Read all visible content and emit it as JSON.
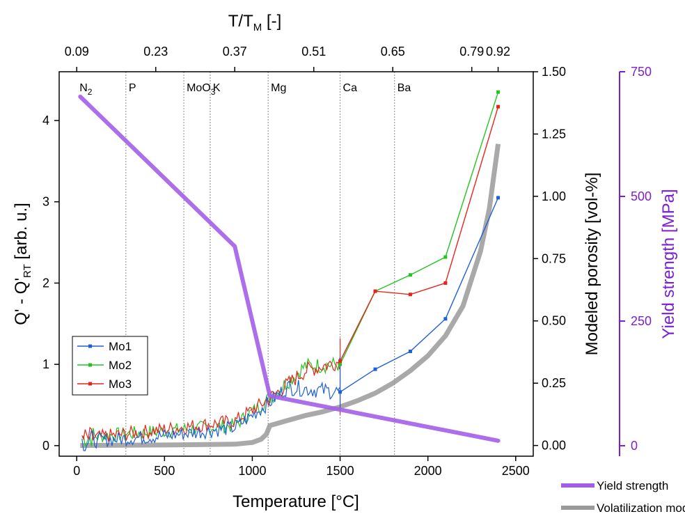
{
  "chart_data": {
    "type": "line",
    "xlabel": "Temperature [°C]",
    "x_ticks": [
      0,
      500,
      1000,
      1500,
      2000,
      2500
    ],
    "xlim": [
      -100,
      2600
    ],
    "top_axis": {
      "label_main": "T/T",
      "label_sub": "M",
      "label_tail": " [-]",
      "ticks": [
        {
          "label": "0.09",
          "x": 0
        },
        {
          "label": "0.23",
          "x": 450
        },
        {
          "label": "0.37",
          "x": 900
        },
        {
          "label": "0.51",
          "x": 1350
        },
        {
          "label": "0.65",
          "x": 1800
        },
        {
          "label": "0.79",
          "x": 2250
        },
        {
          "label": "0.92",
          "x": 2400
        }
      ]
    },
    "ylabel_left": {
      "main": "Q' - Q'",
      "sub": "RT",
      "tail": " [arb. u.]"
    },
    "y_left_ticks": [
      0,
      1,
      2,
      3,
      4
    ],
    "ylim_left": [
      -0.13,
      4.6
    ],
    "ylabel_right": "Modeled porosity [vol-%]",
    "y_right_ticks": [
      "0.00",
      "0.25",
      "0.50",
      "0.75",
      "1.00",
      "1.25",
      "1.50"
    ],
    "ylim_right": [
      -0.043,
      1.5
    ],
    "ylabel_right2": "Yield strength [MPa]",
    "y_right2_ticks": [
      0,
      250,
      500,
      750
    ],
    "ylim_right2": [
      -21,
      750
    ],
    "colors": {
      "Mo1": "#1f5fd6",
      "Mo2": "#22c422",
      "Mo3": "#e8231c",
      "yield": "#a35ee8",
      "volatilization": "#9a9a9a",
      "right2_axis": "#7a1fd6"
    },
    "markers": [
      {
        "label": "N",
        "sub": "2",
        "x": 0,
        "line": false
      },
      {
        "label": "P",
        "sub": "",
        "x": 280,
        "line": true
      },
      {
        "label": "MoO",
        "sub": "3",
        "x": 610,
        "line": true
      },
      {
        "label": "K",
        "sub": "",
        "x": 760,
        "line": true
      },
      {
        "label": "Mg",
        "sub": "",
        "x": 1090,
        "line": true
      },
      {
        "label": "Ca",
        "sub": "",
        "x": 1500,
        "line": true
      },
      {
        "label": "Ba",
        "sub": "",
        "x": 1810,
        "line": true
      }
    ],
    "series": [
      {
        "name": "Mo1",
        "axis": "left",
        "x": [
          1500,
          1700,
          1900,
          2100,
          2400
        ],
        "y": [
          0.66,
          0.94,
          1.16,
          1.56,
          3.05
        ]
      },
      {
        "name": "Mo2",
        "axis": "left",
        "x": [
          1500,
          1700,
          1900,
          2100,
          2400
        ],
        "y": [
          1.0,
          1.9,
          2.1,
          2.32,
          4.35
        ]
      },
      {
        "name": "Mo3",
        "axis": "left",
        "x": [
          1500,
          1700,
          1900,
          2100,
          2400
        ],
        "y": [
          1.04,
          1.9,
          1.86,
          2.0,
          4.17
        ]
      },
      {
        "name": "Yield strength",
        "axis": "right2",
        "x": [
          20,
          900,
          1100,
          2400
        ],
        "y": [
          700,
          400,
          100,
          10
        ]
      },
      {
        "name": "Volatilization model",
        "axis": "right",
        "x": [
          20,
          500,
          900,
          1000,
          1050,
          1080,
          1100,
          1200,
          1300,
          1400,
          1500,
          1600,
          1700,
          1800,
          1900,
          2000,
          2100,
          2200,
          2300,
          2350,
          2400
        ],
        "y": [
          0,
          0.002,
          0.005,
          0.012,
          0.025,
          0.045,
          0.08,
          0.1,
          0.12,
          0.135,
          0.155,
          0.18,
          0.21,
          0.25,
          0.3,
          0.36,
          0.44,
          0.56,
          0.78,
          0.95,
          1.21
        ]
      }
    ],
    "noisy_segment": {
      "x_start": 30,
      "x_end": 1500,
      "Mo1_trend": [
        [
          30,
          0.05
        ],
        [
          500,
          0.12
        ],
        [
          900,
          0.22
        ],
        [
          1080,
          0.5
        ],
        [
          1200,
          0.72
        ],
        [
          1500,
          0.66
        ]
      ],
      "Mo2_trend": [
        [
          30,
          0.1
        ],
        [
          500,
          0.18
        ],
        [
          900,
          0.25
        ],
        [
          1080,
          0.55
        ],
        [
          1300,
          0.98
        ],
        [
          1500,
          1.0
        ]
      ],
      "Mo3_trend": [
        [
          30,
          0.08
        ],
        [
          500,
          0.2
        ],
        [
          900,
          0.3
        ],
        [
          1080,
          0.55
        ],
        [
          1300,
          0.92
        ],
        [
          1500,
          1.04
        ]
      ]
    },
    "legend_inner": [
      "Mo1",
      "Mo2",
      "Mo3"
    ],
    "legend_outer": [
      "Yield strength",
      "Volatilization model"
    ],
    "legend_inner_position": "middle-left",
    "legend_outer_position": "bottom-right",
    "grid": false
  }
}
